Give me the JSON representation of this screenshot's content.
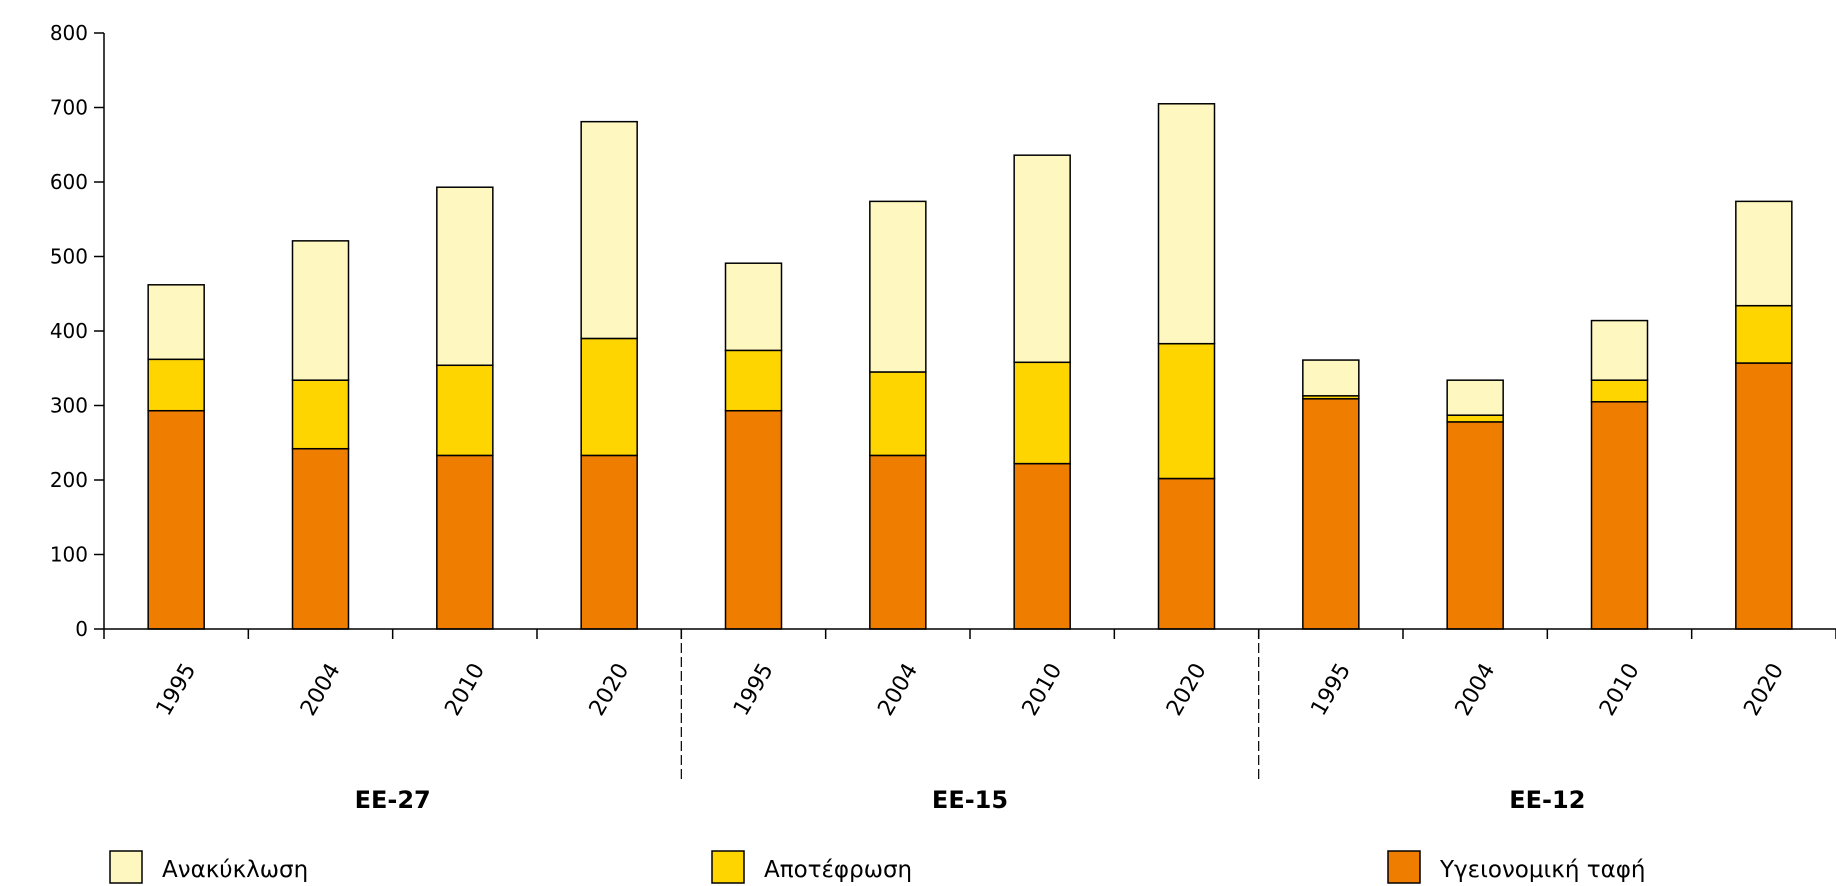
{
  "chart_data": {
    "type": "bar",
    "stacked": true,
    "groups": [
      {
        "label": "ΕΕ-27",
        "categories": [
          "1995",
          "2004",
          "2010",
          "2020"
        ]
      },
      {
        "label": "ΕΕ-15",
        "categories": [
          "1995",
          "2004",
          "2010",
          "2020"
        ]
      },
      {
        "label": "ΕΕ-12",
        "categories": [
          "1995",
          "2004",
          "2010",
          "2020"
        ]
      }
    ],
    "series": [
      {
        "name": "Υγειονομική ταφή",
        "color": "#ee7d00",
        "values": [
          293,
          242,
          233,
          233,
          293,
          233,
          222,
          202,
          309,
          278,
          305,
          357
        ]
      },
      {
        "name": "Αποτέφρωση",
        "color": "#ffd500",
        "values": [
          69,
          92,
          121,
          157,
          81,
          112,
          136,
          181,
          4,
          9,
          29,
          77
        ]
      },
      {
        "name": "Ανακύκλωση",
        "color": "#fff7c0",
        "values": [
          100,
          187,
          239,
          291,
          117,
          229,
          278,
          322,
          48,
          47,
          80,
          140
        ]
      }
    ],
    "ylim": [
      0,
      800
    ],
    "yticks": [
      0,
      100,
      200,
      300,
      400,
      500,
      600,
      700,
      800
    ],
    "legend_position": "bottom",
    "grid": false
  }
}
